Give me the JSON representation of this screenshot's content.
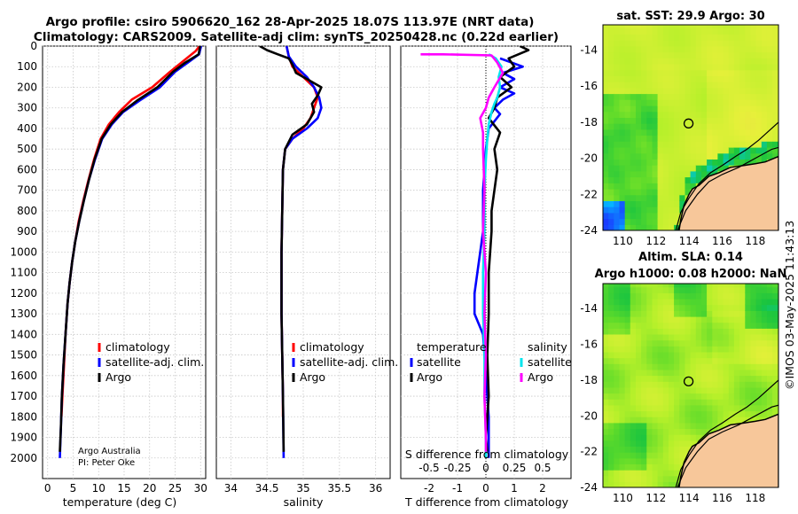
{
  "header": {
    "title_line1": "Argo profile: csiro 5906620_162 28-Apr-2025 18.07S 113.97E (NRT data)",
    "title_line2": "Climatology: CARS2009. Satellite-adj clim: synTS_20250428.nc (0.22d earlier)"
  },
  "credits": {
    "line1": "Argo Australia",
    "line2": "PI: Peter Oke",
    "stamp": "©IMOS 03-May-2025 11:43:13"
  },
  "colors": {
    "climatology": "#ff0000",
    "satellite_adj": "#0000ff",
    "argo": "#000000",
    "sal_satellite": "#00e5ee",
    "sal_argo": "#ff00ff",
    "land": "#f7c79a",
    "grid": "#c8c8c8"
  },
  "legend_main": {
    "climatology": "climatology",
    "satellite": "satellite-adj. clim.",
    "argo": "Argo"
  },
  "legend_diff": {
    "temp_title": "temperature",
    "temp_satellite": "satellite",
    "temp_argo": "Argo",
    "sal_title": "salinity",
    "sal_satellite": "satellite",
    "sal_argo": "Argo"
  },
  "chart_data": [
    {
      "type": "line",
      "name": "temperature-profile",
      "xlabel": "temperature (deg C)",
      "ylabel": "",
      "xlim": [
        -1,
        31
      ],
      "ylim": [
        2100,
        0
      ],
      "xticks": [
        0,
        5,
        10,
        15,
        20,
        25,
        30
      ],
      "yticks": [
        0,
        100,
        200,
        300,
        400,
        500,
        600,
        700,
        800,
        900,
        1000,
        1100,
        1200,
        1300,
        1400,
        1500,
        1600,
        1700,
        1800,
        1900,
        2000
      ],
      "series": [
        {
          "name": "climatology",
          "color": "#ff0000",
          "x": [
            29.8,
            29.0,
            26.5,
            24.0,
            20.5,
            16.5,
            14.0,
            12.0,
            10.4,
            9.1,
            8.0,
            7.0,
            6.1,
            5.4,
            4.8,
            4.3,
            3.9,
            3.5,
            3.2,
            2.9,
            2.7
          ],
          "y": [
            0,
            25,
            75,
            125,
            200,
            260,
            320,
            380,
            450,
            550,
            650,
            750,
            850,
            950,
            1050,
            1150,
            1250,
            1400,
            1550,
            1700,
            1800
          ]
        },
        {
          "name": "satellite-adj. clim.",
          "color": "#0000ff",
          "x": [
            30.1,
            29.7,
            27.5,
            25.0,
            22.0,
            18.0,
            14.8,
            12.6,
            10.7,
            9.3,
            8.1,
            7.1,
            6.2,
            5.4,
            4.8,
            4.3,
            3.9,
            3.5,
            3.1,
            2.8,
            2.6,
            2.4
          ],
          "y": [
            0,
            40,
            80,
            125,
            200,
            265,
            320,
            380,
            450,
            550,
            650,
            750,
            850,
            950,
            1050,
            1150,
            1250,
            1400,
            1550,
            1700,
            1850,
            2000
          ]
        },
        {
          "name": "Argo",
          "color": "#000000",
          "x": [
            29.9,
            29.6,
            27.0,
            24.6,
            21.5,
            17.5,
            14.6,
            12.4,
            10.6,
            9.2,
            8.1,
            7.1,
            6.2,
            5.4,
            4.8,
            4.3,
            3.9,
            3.5,
            3.1,
            2.8,
            2.6,
            2.4
          ],
          "y": [
            0,
            40,
            80,
            125,
            200,
            265,
            320,
            380,
            450,
            550,
            650,
            750,
            850,
            950,
            1050,
            1150,
            1250,
            1400,
            1550,
            1700,
            1850,
            1970
          ]
        }
      ]
    },
    {
      "type": "line",
      "name": "salinity-profile",
      "xlabel": "salinity",
      "xlim": [
        33.8,
        36.2
      ],
      "ylim": [
        2100,
        0
      ],
      "xticks": [
        34,
        34.5,
        35,
        35.5,
        36
      ],
      "series": [
        {
          "name": "climatology",
          "color": "#ff0000",
          "x": [
            34.77,
            34.8,
            34.85,
            35.0,
            35.15,
            35.2,
            35.15,
            35.1,
            35.0,
            34.85,
            34.75,
            34.72,
            34.71,
            34.7,
            34.7,
            34.71,
            34.72,
            34.72
          ],
          "y": [
            0,
            50,
            100,
            150,
            200,
            250,
            300,
            350,
            400,
            450,
            500,
            600,
            800,
            1000,
            1300,
            1500,
            1700,
            1800
          ]
        },
        {
          "name": "satellite-adj. clim.",
          "color": "#0000ff",
          "x": [
            34.77,
            34.8,
            34.9,
            35.05,
            35.15,
            35.22,
            35.25,
            35.2,
            35.05,
            34.85,
            34.75,
            34.72,
            34.71,
            34.7,
            34.7,
            34.71,
            34.72,
            34.73
          ],
          "y": [
            0,
            50,
            100,
            150,
            200,
            250,
            300,
            350,
            400,
            450,
            500,
            600,
            800,
            1000,
            1300,
            1500,
            1700,
            2000
          ]
        },
        {
          "name": "Argo",
          "color": "#000000",
          "x": [
            34.4,
            34.5,
            34.65,
            34.8,
            34.85,
            34.9,
            35.1,
            35.25,
            35.2,
            35.12,
            35.15,
            35.05,
            34.85,
            34.75,
            34.72,
            34.71,
            34.7,
            34.7,
            34.71,
            34.72,
            34.73
          ],
          "y": [
            0,
            20,
            40,
            60,
            90,
            130,
            170,
            200,
            240,
            280,
            320,
            380,
            430,
            500,
            600,
            800,
            1000,
            1300,
            1500,
            1700,
            1970
          ]
        }
      ]
    },
    {
      "type": "line",
      "name": "difference-profile",
      "xlabel": "T difference from climatology",
      "xlabel_top": "S difference from climatology",
      "xlim": [
        -3,
        3
      ],
      "ylim": [
        2100,
        0
      ],
      "xticks": [
        -2,
        -1,
        0,
        1,
        2
      ],
      "xticks_top": [
        -0.5,
        -0.25,
        0,
        0.25,
        0.5
      ],
      "series": [
        {
          "name": "T satellite",
          "color": "#0000ff",
          "x": [
            0.5,
            1.3,
            0.6,
            1.0,
            0.5,
            1.0,
            0.6,
            0.3,
            0.5,
            0.1,
            0.0,
            -0.1,
            -0.1,
            -0.2,
            -0.3,
            -0.4,
            -0.4,
            -0.1,
            0.0,
            0.1,
            0.1
          ],
          "y": [
            60,
            100,
            130,
            160,
            200,
            230,
            260,
            300,
            330,
            400,
            500,
            700,
            900,
            1000,
            1100,
            1200,
            1300,
            1400,
            1600,
            1800,
            2000
          ]
        },
        {
          "name": "T Argo",
          "color": "#000000",
          "x": [
            1.2,
            1.5,
            0.8,
            1.0,
            0.5,
            0.9,
            0.4,
            0.3,
            0.1,
            0.5,
            0.3,
            0.4,
            0.3,
            0.2,
            0.2,
            0.1,
            0.1,
            0.05,
            0.1,
            0.0,
            0.05
          ],
          "y": [
            0,
            20,
            60,
            100,
            150,
            200,
            250,
            300,
            350,
            420,
            500,
            600,
            700,
            800,
            900,
            1100,
            1300,
            1500,
            1700,
            1900,
            1970
          ]
        },
        {
          "name": "S satellite",
          "color": "#00e5ee",
          "x": [
            0.1,
            0.35,
            0.55,
            0.45,
            0.5,
            0.4,
            0.3,
            0.2,
            0.1,
            0.05,
            0.0,
            -0.05,
            -0.05,
            -0.1,
            -0.1,
            -0.05,
            -0.05,
            0.0,
            0.0
          ],
          "y": [
            40,
            60,
            100,
            150,
            200,
            250,
            280,
            320,
            380,
            450,
            550,
            700,
            900,
            1100,
            1300,
            1500,
            1700,
            1900,
            2000
          ]
        },
        {
          "name": "S Argo",
          "color": "#ff00ff",
          "x": [
            -2.3,
            -1.5,
            0.2,
            0.4,
            0.6,
            0.3,
            0.1,
            0.0,
            -0.2,
            -0.1,
            -0.1,
            -0.05,
            -0.1,
            0.0,
            -0.05,
            0.0,
            -0.05,
            0.0,
            0.0
          ],
          "y": [
            40,
            40,
            45,
            80,
            130,
            200,
            250,
            300,
            350,
            420,
            500,
            700,
            900,
            1100,
            1300,
            1500,
            1700,
            1900,
            1970
          ]
        }
      ]
    },
    {
      "type": "heatmap",
      "name": "sst-map",
      "title": "sat. SST: 29.9 Argo: 30",
      "xlim": [
        108.8,
        119.4
      ],
      "ylim": [
        -24,
        -12.6
      ],
      "xticks": [
        110,
        112,
        114,
        116,
        118
      ],
      "yticks": [
        -24,
        -22,
        -20,
        -18,
        -16,
        -14
      ],
      "profile_location": {
        "lon": 113.97,
        "lat": -18.07
      }
    },
    {
      "type": "heatmap",
      "name": "sla-map",
      "title_line1": "Altim. SLA: 0.14",
      "title_line2": "Argo h1000: 0.08 h2000: NaN",
      "xlim": [
        108.8,
        119.4
      ],
      "ylim": [
        -24,
        -12.6
      ],
      "xticks": [
        110,
        112,
        114,
        116,
        118
      ],
      "yticks": [
        -24,
        -22,
        -20,
        -18,
        -16,
        -14
      ],
      "profile_location": {
        "lon": 113.97,
        "lat": -18.07
      }
    }
  ]
}
